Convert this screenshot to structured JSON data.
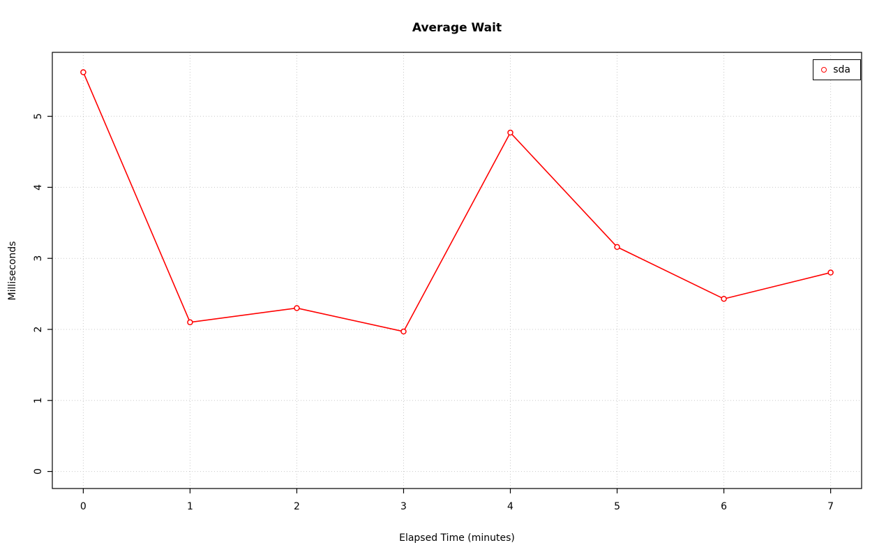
{
  "chart_data": {
    "type": "line",
    "title": "Average Wait",
    "xlabel": "Elapsed Time (minutes)",
    "ylabel": "Milliseconds",
    "x_ticks": [
      0,
      1,
      2,
      3,
      4,
      5,
      6,
      7
    ],
    "y_ticks": [
      0,
      1,
      2,
      3,
      4,
      5
    ],
    "xlim": [
      -0.29,
      7.29
    ],
    "ylim": [
      -0.24,
      5.9
    ],
    "grid": true,
    "series": [
      {
        "name": "sda",
        "color": "#ff0000",
        "marker": "open-circle",
        "x": [
          0,
          1,
          2,
          3,
          4,
          5,
          6,
          7
        ],
        "y": [
          5.62,
          2.1,
          2.3,
          1.97,
          4.77,
          3.16,
          2.43,
          2.8
        ]
      }
    ],
    "legend": {
      "position": "top-right",
      "entries": [
        "sda"
      ]
    }
  },
  "colors": {
    "series": "#ff0000",
    "grid": "#c8c8c8",
    "axis": "#000000",
    "background": "#ffffff"
  }
}
